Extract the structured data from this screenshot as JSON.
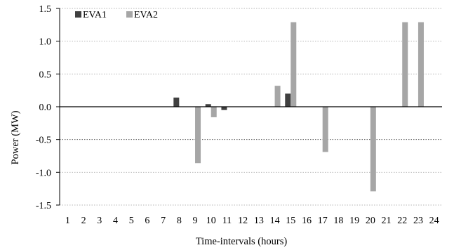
{
  "chart_data": {
    "type": "bar",
    "title": "",
    "xlabel": "Time-intervals (hours)",
    "ylabel": "Power (MW)",
    "ylim": [
      -1.5,
      1.5
    ],
    "yticks": [
      "1.5",
      "1.0",
      "0.5",
      "0.0",
      "-0.5",
      "-1.0",
      "-1.5"
    ],
    "ytick_values": [
      1.5,
      1.0,
      0.5,
      0.0,
      -0.5,
      -1.0,
      -1.5
    ],
    "grid": "horizontal-dotted",
    "legend_position": "top-left",
    "categories": [
      "1",
      "2",
      "3",
      "4",
      "5",
      "6",
      "7",
      "8",
      "9",
      "10",
      "11",
      "12",
      "13",
      "14",
      "15",
      "16",
      "17",
      "18",
      "19",
      "20",
      "21",
      "22",
      "23",
      "24"
    ],
    "series": [
      {
        "name": "EVA1",
        "color": "#404040",
        "values": [
          0,
          0,
          0,
          0,
          0,
          0,
          0,
          0.14,
          0,
          0.04,
          -0.05,
          0,
          0,
          0,
          0.2,
          0,
          0,
          0,
          0,
          0,
          0,
          0,
          0,
          0
        ]
      },
      {
        "name": "EVA2",
        "color": "#a6a6a6",
        "values": [
          0,
          0,
          0,
          0,
          0,
          0,
          0,
          0,
          -0.86,
          -0.16,
          0,
          0,
          0,
          0.32,
          1.29,
          0,
          -0.69,
          0,
          0,
          -1.29,
          0,
          1.29,
          1.29,
          0
        ]
      }
    ]
  }
}
